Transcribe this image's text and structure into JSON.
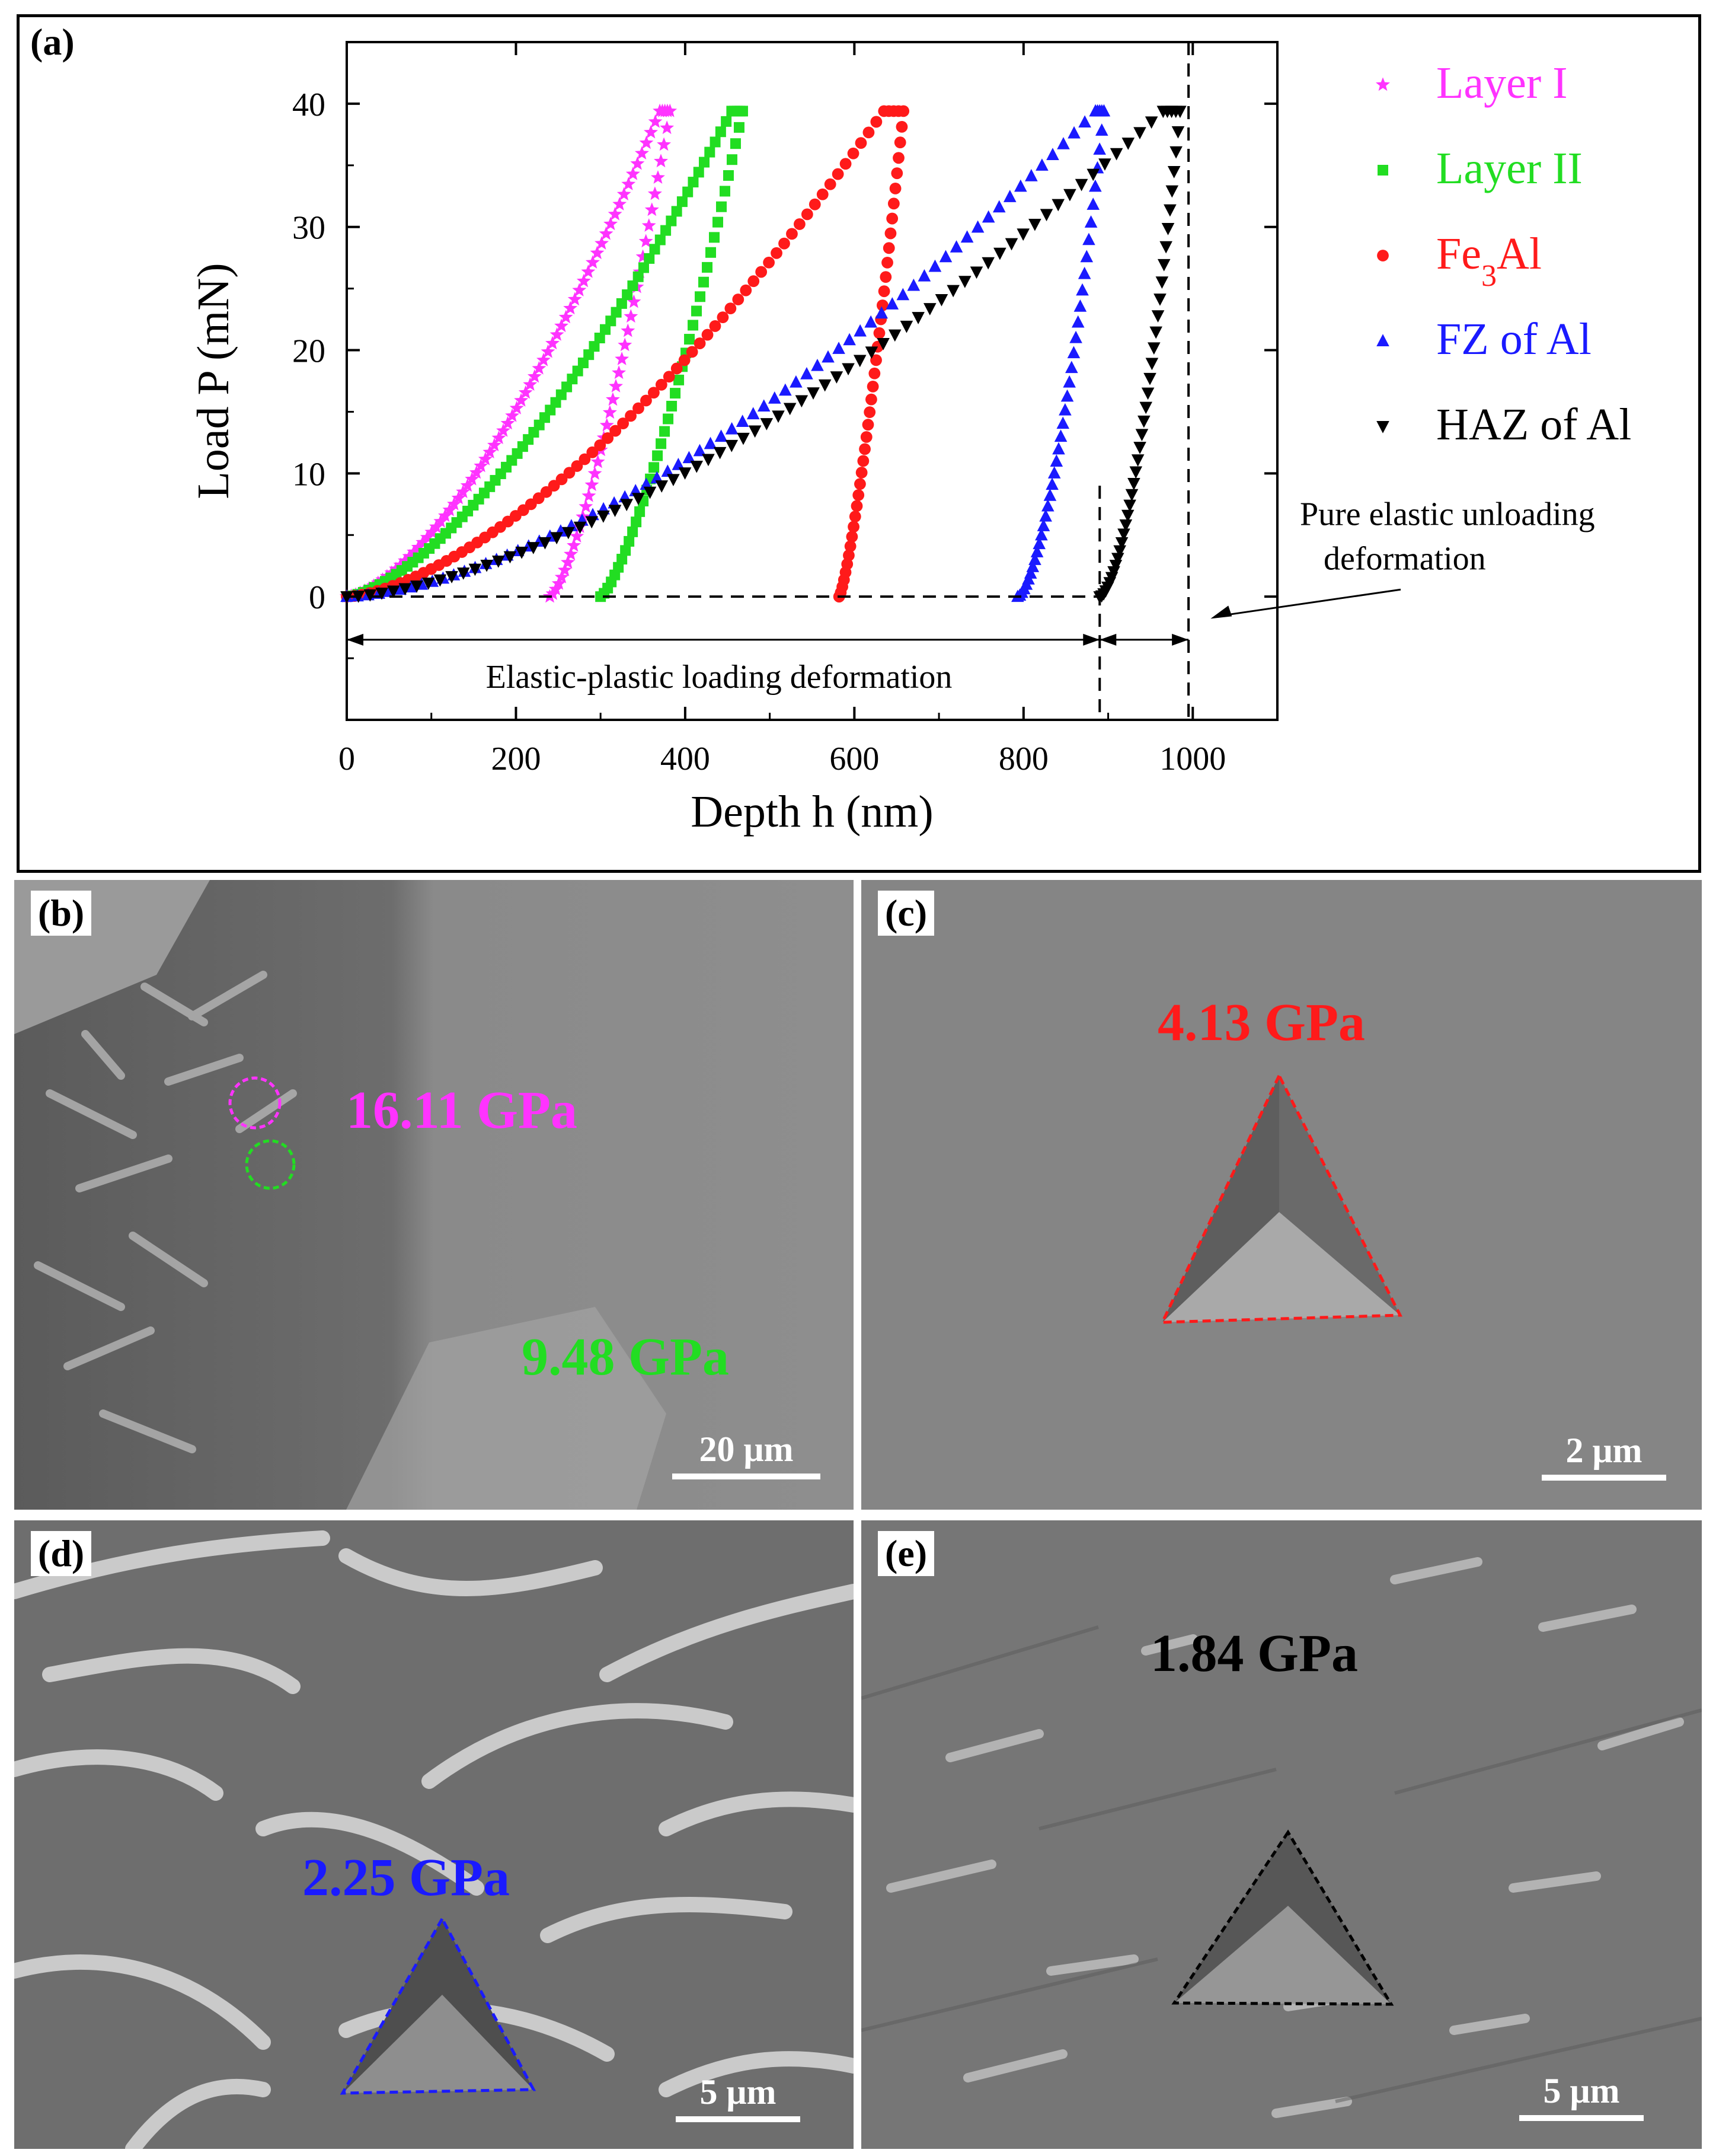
{
  "panels": {
    "a": {
      "label": "(a)"
    },
    "b": {
      "label": "(b)",
      "scale": "20 μm",
      "hardness": [
        {
          "value": "16.11 GPa",
          "color": "#ff33ff"
        },
        {
          "value": "9.48 GPa",
          "color": "#22dd22"
        }
      ]
    },
    "c": {
      "label": "(c)",
      "scale": "2 μm",
      "hardness": "4.13 GPa",
      "color": "#ff1a1a"
    },
    "d": {
      "label": "(d)",
      "scale": "5 μm",
      "hardness": "2.25 GPa",
      "color": "#1a1aff"
    },
    "e": {
      "label": "(e)",
      "scale": "5 μm",
      "hardness": "1.84 GPa",
      "color": "#000000"
    }
  },
  "chart_data": {
    "type": "scatter",
    "title": "",
    "xlabel": "Depth h (nm)",
    "ylabel": "Load P (mN)",
    "xlim": [
      0,
      1100
    ],
    "ylim": [
      -10,
      45
    ],
    "xticks": [
      0,
      200,
      400,
      600,
      800,
      1000
    ],
    "yticks": [
      0,
      10,
      20,
      30,
      40
    ],
    "grid": false,
    "legend_position": "right-outside",
    "series": [
      {
        "name": "Layer I",
        "color": "#ff33ff",
        "marker": "star",
        "loading": {
          "h0": 0,
          "hmax": 370,
          "pmax": 39.4,
          "exp": 1.55
        },
        "hold_end": 382,
        "unloading": {
          "hf": 240,
          "hmax": 382,
          "exp": 1.4
        }
      },
      {
        "name": "Layer II",
        "color": "#22dd22",
        "marker": "square",
        "loading": {
          "h0": 0,
          "hmax": 455,
          "pmax": 39.4,
          "exp": 1.5
        },
        "hold_end": 468,
        "unloading": {
          "hf": 300,
          "hmax": 468,
          "exp": 1.35
        }
      },
      {
        "name": "Fe3Al",
        "name_main": "Fe",
        "name_sub": "3",
        "name_tail": "Al",
        "color": "#ff1a1a",
        "marker": "circle",
        "loading": {
          "h0": 0,
          "hmax": 635,
          "pmax": 39.4,
          "exp": 1.55
        },
        "hold_end": 658,
        "unloading": {
          "hf": 582,
          "hmax": 658,
          "exp": 1.3
        }
      },
      {
        "name": "FZ of Al",
        "color": "#1a1aff",
        "marker": "triangle-up",
        "loading": {
          "h0": 0,
          "hmax": 885,
          "pmax": 39.4,
          "exp": 1.6
        },
        "hold_end": 895,
        "unloading": {
          "hf": 793,
          "hmax": 895,
          "exp": 1.6
        }
      },
      {
        "name": "HAZ of Al",
        "color": "#000000",
        "marker": "triangle-down",
        "loading": {
          "h0": 0,
          "hmax": 965,
          "pmax": 39.4,
          "exp": 1.55
        },
        "hold_end": 985,
        "unloading": {
          "hf": 890,
          "hmax": 985,
          "exp": 1.7
        }
      }
    ],
    "annotations": {
      "elastic_plastic": "Elastic-plastic loading deformation",
      "pure_elastic_line1": "Pure elastic unloading",
      "pure_elastic_line2": "deformation",
      "hf": 890,
      "hmax": 995
    }
  }
}
